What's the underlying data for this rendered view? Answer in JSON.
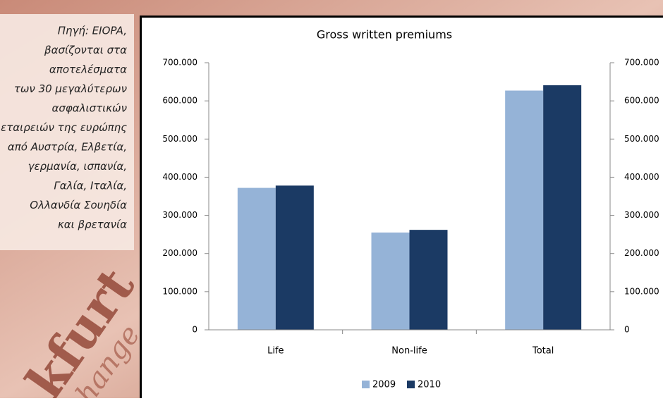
{
  "chart_data": {
    "type": "bar",
    "title": "Gross written premiums",
    "categories": [
      "Life",
      "Non-life",
      "Total"
    ],
    "series": [
      {
        "name": "2009",
        "color": "#95b3d7",
        "values": [
          372000,
          255000,
          627000
        ]
      },
      {
        "name": "2010",
        "color": "#1b3a64",
        "values": [
          378000,
          262000,
          641000
        ]
      }
    ],
    "ylim": [
      0,
      700000
    ],
    "yticks": [
      {
        "value": 0,
        "label": "0"
      },
      {
        "value": 100000,
        "label": "100.000"
      },
      {
        "value": 200000,
        "label": "200.000"
      },
      {
        "value": 300000,
        "label": "300.000"
      },
      {
        "value": 400000,
        "label": "400.000"
      },
      {
        "value": 500000,
        "label": "500.000"
      },
      {
        "value": 600000,
        "label": "600.000"
      },
      {
        "value": 700000,
        "label": "700.000"
      }
    ],
    "grid": false,
    "legend": "bottom"
  },
  "note": {
    "lines": [
      "Πηγή: EIOPA,",
      "βασίζονται στα",
      "αποτελέσματα",
      "των 30 μεγαλύτερων",
      "ασφαλιστικών",
      "εταιρειών της ευρώπης",
      "από Αυστρία, Ελβετία,",
      "γερμανία, ισπανία,",
      "Γαλία, Ιταλία,",
      "Ολλανδία Σουηδία",
      "και βρετανία"
    ]
  },
  "background_text": [
    "kfurt",
    "hange"
  ]
}
